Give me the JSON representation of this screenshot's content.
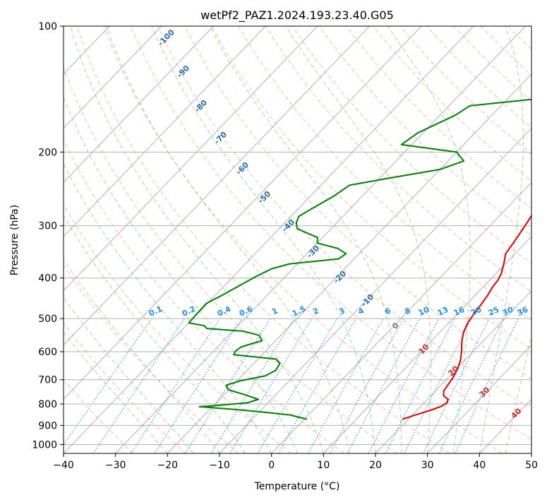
{
  "chart_data": {
    "type": "line",
    "title": "wetPf2_PAZ1.2024.193.23.40.G05",
    "xlabel": "Temperature (°C)",
    "ylabel": "Pressure (hPa)",
    "xlim": [
      -40,
      50
    ],
    "ylim": [
      1050,
      100
    ],
    "y_scale": "log",
    "x_ticks": [
      "−40",
      "−30",
      "−20",
      "−10",
      "0",
      "10",
      "20",
      "30",
      "40",
      "50"
    ],
    "y_ticks": [
      "100",
      "200",
      "300",
      "400",
      "500",
      "600",
      "700",
      "800",
      "900",
      "1000"
    ],
    "grid": true,
    "series": [
      {
        "color": "#e00000",
        "points": [
          {
            "p": 870,
            "t": 18.9
          },
          {
            "p": 850,
            "t": 20.6
          },
          {
            "p": 830,
            "t": 22.5
          },
          {
            "p": 810,
            "t": 24.0
          },
          {
            "p": 795,
            "t": 24.4
          },
          {
            "p": 780,
            "t": 24.0
          },
          {
            "p": 765,
            "t": 22.5
          },
          {
            "p": 745,
            "t": 21.6
          },
          {
            "p": 720,
            "t": 21.3
          },
          {
            "p": 690,
            "t": 20.9
          },
          {
            "p": 660,
            "t": 20.2
          },
          {
            "p": 630,
            "t": 19.2
          },
          {
            "p": 600,
            "t": 17.8
          },
          {
            "p": 570,
            "t": 16.1
          },
          {
            "p": 540,
            "t": 14.6
          },
          {
            "p": 510,
            "t": 13.6
          },
          {
            "p": 480,
            "t": 13.1
          },
          {
            "p": 460,
            "t": 12.8
          },
          {
            "p": 440,
            "t": 12.4
          },
          {
            "p": 420,
            "t": 11.8
          },
          {
            "p": 405,
            "t": 11.6
          },
          {
            "p": 390,
            "t": 11.0
          },
          {
            "p": 370,
            "t": 9.7
          },
          {
            "p": 350,
            "t": 8.2
          },
          {
            "p": 320,
            "t": 7.4
          },
          {
            "p": 290,
            "t": 6.4
          },
          {
            "p": 260,
            "t": 5.0
          },
          {
            "p": 230,
            "t": 3.5
          },
          {
            "p": 213,
            "t": 3.5
          },
          {
            "p": 200,
            "t": 4.5
          },
          {
            "p": 185,
            "t": 6.0
          },
          {
            "p": 170,
            "t": 8.5
          },
          {
            "p": 155,
            "t": 9.2
          },
          {
            "p": 140,
            "t": 9.5
          },
          {
            "p": 125,
            "t": 8.9
          },
          {
            "p": 115,
            "t": 9.6
          },
          {
            "p": 107,
            "t": 11.0
          },
          {
            "p": 100,
            "t": 13.6
          }
        ]
      },
      {
        "color": "#008000",
        "points": [
          {
            "p": 870,
            "t": 0.5
          },
          {
            "p": 850,
            "t": -3.5
          },
          {
            "p": 835,
            "t": -10.0
          },
          {
            "p": 825,
            "t": -15.0
          },
          {
            "p": 812,
            "t": -22.5
          },
          {
            "p": 808,
            "t": -20.0
          },
          {
            "p": 795,
            "t": -14.0
          },
          {
            "p": 780,
            "t": -12.5
          },
          {
            "p": 760,
            "t": -16.0
          },
          {
            "p": 740,
            "t": -20.0
          },
          {
            "p": 722,
            "t": -21.3
          },
          {
            "p": 705,
            "t": -19.5
          },
          {
            "p": 685,
            "t": -15.5
          },
          {
            "p": 665,
            "t": -14.5
          },
          {
            "p": 640,
            "t": -15.0
          },
          {
            "p": 625,
            "t": -16.5
          },
          {
            "p": 610,
            "t": -25.5
          },
          {
            "p": 598,
            "t": -25.8
          },
          {
            "p": 585,
            "t": -25.5
          },
          {
            "p": 577,
            "t": -24.5
          },
          {
            "p": 565,
            "t": -22.6
          },
          {
            "p": 548,
            "t": -24.2
          },
          {
            "p": 536,
            "t": -28.0
          },
          {
            "p": 528,
            "t": -35.5
          },
          {
            "p": 520,
            "t": -36.5
          },
          {
            "p": 512,
            "t": -40.0
          },
          {
            "p": 460,
            "t": -40.2
          },
          {
            "p": 440,
            "t": -38.7
          },
          {
            "p": 415,
            "t": -37.0
          },
          {
            "p": 395,
            "t": -35.5
          },
          {
            "p": 380,
            "t": -34.0
          },
          {
            "p": 370,
            "t": -31.5
          },
          {
            "p": 360,
            "t": -23.0
          },
          {
            "p": 350,
            "t": -22.5
          },
          {
            "p": 340,
            "t": -25.0
          },
          {
            "p": 330,
            "t": -30.0
          },
          {
            "p": 320,
            "t": -31.0
          },
          {
            "p": 305,
            "t": -36.5
          },
          {
            "p": 295,
            "t": -37.8
          },
          {
            "p": 285,
            "t": -38.5
          },
          {
            "p": 272,
            "t": -37.3
          },
          {
            "p": 255,
            "t": -35.5
          },
          {
            "p": 240,
            "t": -34.5
          },
          {
            "p": 232,
            "t": -29.0
          },
          {
            "p": 220,
            "t": -20.0
          },
          {
            "p": 210,
            "t": -17.0
          },
          {
            "p": 200,
            "t": -20.0
          },
          {
            "p": 192,
            "t": -32.0
          },
          {
            "p": 180,
            "t": -31.0
          },
          {
            "p": 163,
            "t": -27.0
          },
          {
            "p": 155,
            "t": -26.0
          },
          {
            "p": 152,
            "t": -20.0
          },
          {
            "p": 148,
            "t": -12.0
          },
          {
            "p": 143,
            "t": -8.0
          },
          {
            "p": 137,
            "t": -5.5
          },
          {
            "p": 128,
            "t": -3.5
          },
          {
            "p": 120,
            "t": -1.8
          },
          {
            "p": 112,
            "t": -1.8
          },
          {
            "p": 106,
            "t": -0.5
          },
          {
            "p": 100,
            "t": 1.0
          }
        ]
      }
    ],
    "dry_adiabats_labels": [
      "-100",
      "-90",
      "-80",
      "-70",
      "-60",
      "-50",
      "-40",
      "-30",
      "-20",
      "-10",
      "0",
      "10",
      "20",
      "30",
      "40"
    ],
    "mixing_ratio_labels": [
      "0.1",
      "0.2",
      "0.4",
      "0.6",
      "1",
      "1.5",
      "2",
      "3",
      "4",
      "6",
      "8",
      "10",
      "13",
      "16",
      "20",
      "25",
      "30",
      "36"
    ],
    "colors": {
      "temperature": "#e00000",
      "dewpoint": "#008000",
      "dry_adiabat": "#f4a582",
      "moist_adiabat": "#8fcb8f",
      "mixing_ratio": "#1f8fe8",
      "isotherm": "#555555"
    }
  }
}
